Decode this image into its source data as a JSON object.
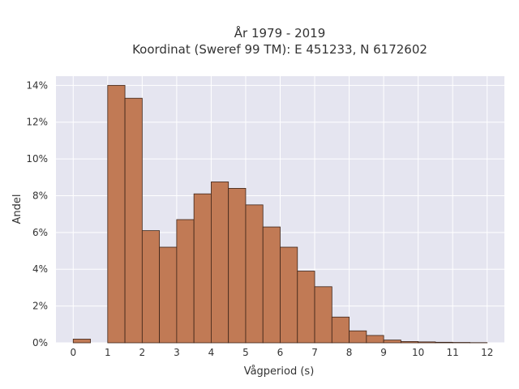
{
  "chart_data": {
    "type": "bar",
    "title": "År 1979 - 2019",
    "subtitle": "Koordinat (Sweref 99 TM): E 451233, N 6172602",
    "xlabel": "Vågperiod (s)",
    "ylabel": "Andel",
    "bin_width": 0.5,
    "xlim": [
      -0.5,
      12.5
    ],
    "ylim": [
      0,
      14.5
    ],
    "x_ticks": [
      0,
      1,
      2,
      3,
      4,
      5,
      6,
      7,
      8,
      9,
      10,
      11,
      12
    ],
    "y_ticks": [
      0,
      2,
      4,
      6,
      8,
      10,
      12,
      14
    ],
    "y_tick_labels": [
      "0%",
      "2%",
      "4%",
      "6%",
      "8%",
      "10%",
      "12%",
      "14%"
    ],
    "bins": [
      {
        "start": 0.0,
        "value": 0.2
      },
      {
        "start": 1.0,
        "value": 14.0
      },
      {
        "start": 1.5,
        "value": 13.3
      },
      {
        "start": 2.0,
        "value": 6.1
      },
      {
        "start": 2.5,
        "value": 5.2
      },
      {
        "start": 3.0,
        "value": 6.7
      },
      {
        "start": 3.5,
        "value": 8.1
      },
      {
        "start": 4.0,
        "value": 8.75
      },
      {
        "start": 4.5,
        "value": 8.4
      },
      {
        "start": 5.0,
        "value": 7.5
      },
      {
        "start": 5.5,
        "value": 6.3
      },
      {
        "start": 6.0,
        "value": 5.2
      },
      {
        "start": 6.5,
        "value": 3.9
      },
      {
        "start": 7.0,
        "value": 3.05
      },
      {
        "start": 7.5,
        "value": 1.4
      },
      {
        "start": 8.0,
        "value": 0.65
      },
      {
        "start": 8.5,
        "value": 0.4
      },
      {
        "start": 9.0,
        "value": 0.15
      },
      {
        "start": 9.5,
        "value": 0.07
      },
      {
        "start": 10.0,
        "value": 0.05
      },
      {
        "start": 10.5,
        "value": 0.03
      },
      {
        "start": 11.0,
        "value": 0.02
      },
      {
        "start": 11.5,
        "value": 0.01
      }
    ],
    "grid": true,
    "colors": {
      "bar_fill": "#c17a55",
      "bar_stroke": "#3d2418",
      "plot_background": "#e5e5f0",
      "grid": "#ffffff"
    }
  }
}
